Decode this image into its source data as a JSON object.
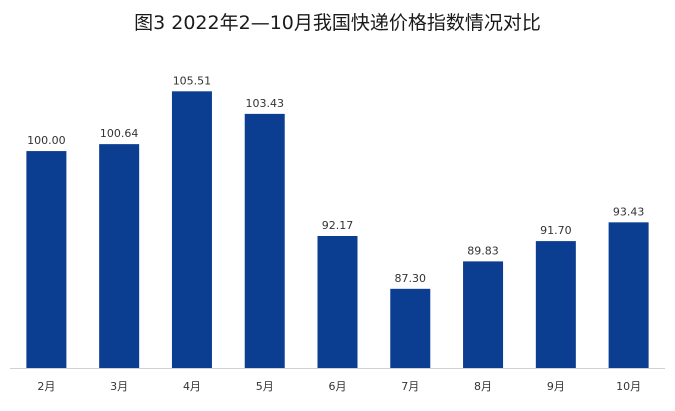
{
  "chart_data": {
    "type": "bar",
    "title": "图3 2022年2—10月我国快递价格指数情况对比",
    "categories": [
      "2月",
      "3月",
      "4月",
      "5月",
      "6月",
      "7月",
      "8月",
      "9月",
      "10月"
    ],
    "values": [
      100.0,
      100.64,
      105.51,
      103.43,
      92.17,
      87.3,
      89.83,
      91.7,
      93.43
    ],
    "value_labels": [
      "100.00",
      "100.64",
      "105.51",
      "103.43",
      "92.17",
      "87.30",
      "89.83",
      "91.70",
      "93.43"
    ],
    "xlabel": "",
    "ylabel": "",
    "ylim": [
      80,
      106
    ],
    "grid": false,
    "bar_color": "#0b3d91"
  }
}
